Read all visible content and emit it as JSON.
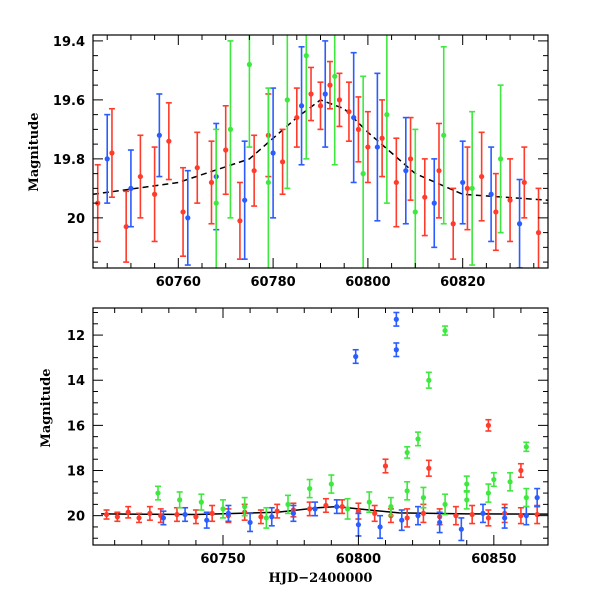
{
  "chart_data": [
    {
      "type": "scatter",
      "title": "",
      "xlabel": "",
      "ylabel": "Magnitude",
      "xlim": [
        60742,
        60838
      ],
      "ylim": [
        20.17,
        19.38
      ],
      "y_inverted": true,
      "xticks": [
        60760,
        60780,
        60800,
        60820
      ],
      "yticks": [
        19.4,
        19.6,
        19.8,
        20
      ],
      "grid": false,
      "legend": "none",
      "model_curve": {
        "color": "#000000",
        "style": "dashed",
        "x": [
          60742,
          60760,
          60775,
          60785,
          60790,
          60795,
          60800,
          60810,
          60820,
          60838
        ],
        "y": [
          19.92,
          19.88,
          19.8,
          19.66,
          19.6,
          19.63,
          19.71,
          19.85,
          19.92,
          19.94
        ]
      },
      "series": [
        {
          "color": "#ff3b2b",
          "x": [
            60743,
            60746,
            60749,
            60752,
            60755,
            60758,
            60761,
            60764,
            60767,
            60770,
            60773,
            60776,
            60779,
            60782,
            60785,
            60788,
            60790,
            60792,
            60794,
            60796,
            60798,
            60800,
            60803,
            60806,
            60809,
            60812,
            60815,
            60818,
            60821,
            60824,
            60827,
            60830,
            60833,
            60836
          ],
          "y": [
            19.95,
            19.78,
            20.03,
            19.86,
            19.92,
            19.74,
            19.98,
            19.83,
            19.88,
            19.77,
            20.01,
            19.84,
            19.72,
            19.81,
            19.66,
            19.58,
            19.62,
            19.55,
            19.6,
            19.64,
            19.7,
            19.76,
            19.73,
            19.88,
            19.8,
            19.93,
            19.84,
            20.02,
            19.9,
            19.86,
            19.98,
            19.94,
            19.88,
            20.05
          ],
          "err": [
            0.13,
            0.15,
            0.12,
            0.14,
            0.16,
            0.13,
            0.15,
            0.12,
            0.14,
            0.15,
            0.13,
            0.12,
            0.14,
            0.11,
            0.1,
            0.09,
            0.08,
            0.08,
            0.09,
            0.1,
            0.11,
            0.12,
            0.13,
            0.15,
            0.14,
            0.13,
            0.16,
            0.12,
            0.14,
            0.15,
            0.13,
            0.14,
            0.12,
            0.15
          ]
        },
        {
          "color": "#2b5cff",
          "x": [
            60745,
            60750,
            60756,
            60762,
            60768,
            60774,
            60780,
            60786,
            60791,
            60797,
            60802,
            60808,
            60814,
            60820,
            60826,
            60832
          ],
          "y": [
            19.8,
            19.9,
            19.72,
            20.0,
            19.86,
            19.94,
            19.78,
            19.62,
            19.58,
            19.66,
            19.76,
            19.84,
            19.95,
            19.88,
            19.92,
            20.02
          ],
          "err": [
            0.15,
            0.13,
            0.14,
            0.16,
            0.18,
            0.2,
            0.22,
            0.2,
            0.18,
            0.22,
            0.25,
            0.18,
            0.15,
            0.14,
            0.16,
            0.15
          ]
        },
        {
          "color": "#3ee83e",
          "x": [
            60768,
            60771,
            60775,
            60779,
            60783,
            60787,
            60793,
            60799,
            60804,
            60810,
            60816,
            60822,
            60828
          ],
          "y": [
            19.95,
            19.7,
            19.48,
            19.88,
            19.6,
            19.45,
            19.52,
            19.85,
            19.65,
            19.98,
            19.72,
            19.9,
            19.8
          ],
          "err": [
            0.25,
            0.3,
            0.28,
            0.32,
            0.3,
            0.35,
            0.3,
            0.33,
            0.3,
            0.28,
            0.3,
            0.26,
            0.25
          ]
        }
      ]
    },
    {
      "type": "scatter",
      "title": "",
      "xlabel": "HJD−2400000",
      "ylabel": "Magnitude",
      "xlim": [
        60702,
        60870
      ],
      "ylim": [
        21.3,
        10.8
      ],
      "y_inverted": true,
      "xticks": [
        60750,
        60800,
        60850
      ],
      "yticks": [
        12,
        14,
        16,
        18,
        20
      ],
      "grid": false,
      "legend": "none",
      "model_curve": {
        "color": "#000000",
        "style": "solid",
        "x": [
          60705,
          60740,
          60770,
          60785,
          60792,
          60800,
          60815,
          60840,
          60870
        ],
        "y": [
          19.92,
          19.95,
          19.85,
          19.65,
          19.6,
          19.7,
          19.88,
          19.92,
          19.93
        ]
      },
      "series": [
        {
          "color": "#ff3b2b",
          "x": [
            60707,
            60711,
            60715,
            60719,
            60723,
            60727,
            60733,
            60740,
            60746,
            60752,
            60758,
            60764,
            60770,
            60776,
            60782,
            60788,
            60794,
            60800,
            60806,
            60812,
            60818,
            60824,
            60830,
            60836,
            60842,
            60848,
            60854,
            60860,
            60866,
            60810,
            60826,
            60848,
            60860
          ],
          "y": [
            19.95,
            20.05,
            19.85,
            20.1,
            19.9,
            20.0,
            19.95,
            20.05,
            19.9,
            20.0,
            19.85,
            20.05,
            19.8,
            19.75,
            19.7,
            19.55,
            19.6,
            19.8,
            19.9,
            20.0,
            20.1,
            19.9,
            20.05,
            20.0,
            19.95,
            20.1,
            19.9,
            20.0,
            19.95,
            17.8,
            17.9,
            16.0,
            18.0
          ],
          "err": [
            0.2,
            0.2,
            0.25,
            0.2,
            0.3,
            0.3,
            0.3,
            0.3,
            0.35,
            0.3,
            0.35,
            0.3,
            0.3,
            0.3,
            0.3,
            0.3,
            0.3,
            0.35,
            0.35,
            0.3,
            0.4,
            0.4,
            0.35,
            0.4,
            0.4,
            0.35,
            0.4,
            0.35,
            0.4,
            0.3,
            0.35,
            0.25,
            0.3
          ]
        },
        {
          "color": "#2b5cff",
          "x": [
            60728,
            60736,
            60744,
            60752,
            60760,
            60768,
            60776,
            60784,
            60792,
            60800,
            60808,
            60816,
            60822,
            60830,
            60838,
            60846,
            60854,
            60862,
            60866,
            60799,
            60814,
            60814
          ],
          "y": [
            20.1,
            19.95,
            20.2,
            19.9,
            20.3,
            20.05,
            19.9,
            19.7,
            19.6,
            20.4,
            20.5,
            20.2,
            20.0,
            20.3,
            20.6,
            19.9,
            20.1,
            20.0,
            19.2,
            12.95,
            11.3,
            12.65
          ],
          "err": [
            0.3,
            0.3,
            0.35,
            0.35,
            0.4,
            0.4,
            0.35,
            0.3,
            0.3,
            0.5,
            0.5,
            0.45,
            0.4,
            0.45,
            0.5,
            0.4,
            0.45,
            0.4,
            0.4,
            0.3,
            0.3,
            0.3
          ]
        },
        {
          "color": "#3ee83e",
          "x": [
            60726,
            60734,
            60742,
            60750,
            60758,
            60766,
            60774,
            60782,
            60790,
            60796,
            60804,
            60812,
            60818,
            60824,
            60832,
            60840,
            60848,
            60856,
            60862,
            60826,
            60832,
            60822,
            60840,
            60850,
            60862,
            60818
          ],
          "y": [
            19.0,
            19.3,
            19.4,
            19.7,
            19.6,
            20.1,
            19.5,
            18.8,
            18.6,
            19.7,
            19.4,
            19.6,
            18.9,
            19.2,
            19.5,
            19.3,
            19.0,
            18.5,
            19.2,
            14.0,
            11.8,
            16.6,
            18.6,
            18.4,
            16.95,
            17.2
          ],
          "err": [
            0.3,
            0.35,
            0.35,
            0.4,
            0.4,
            0.45,
            0.4,
            0.4,
            0.4,
            0.45,
            0.45,
            0.4,
            0.4,
            0.45,
            0.45,
            0.4,
            0.4,
            0.4,
            0.4,
            0.35,
            0.2,
            0.3,
            0.35,
            0.3,
            0.2,
            0.25
          ]
        }
      ]
    }
  ]
}
